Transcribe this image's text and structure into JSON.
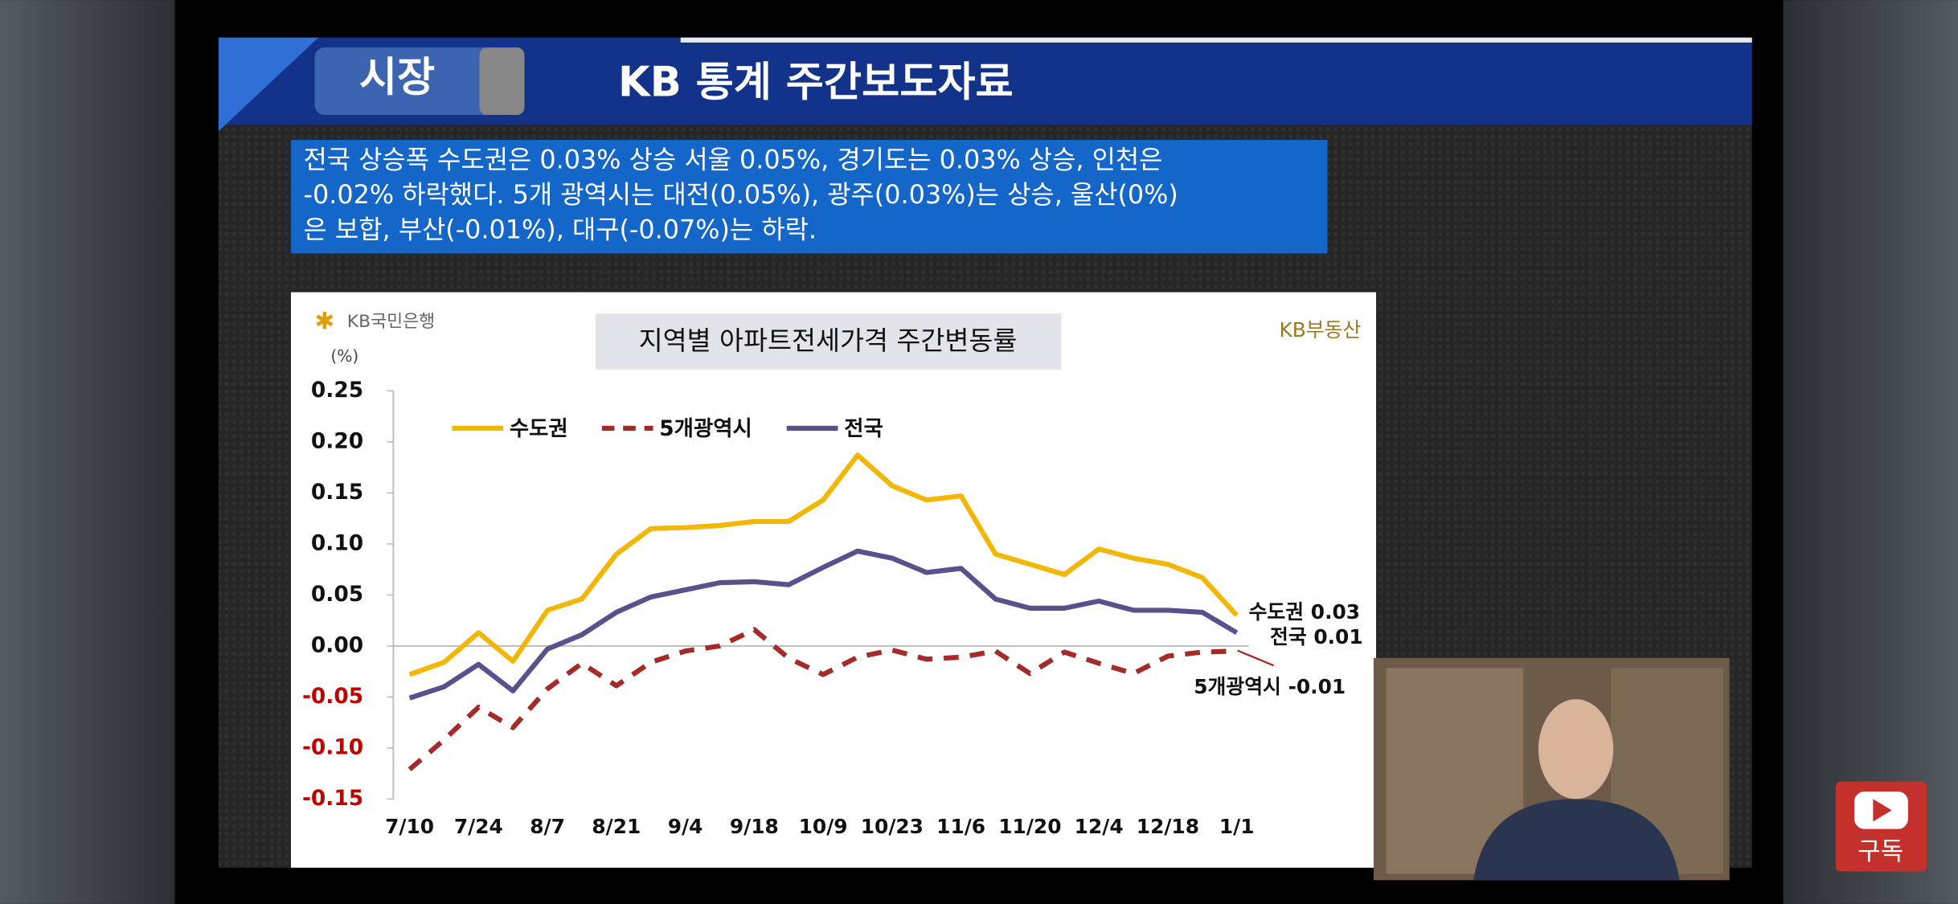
{
  "header": {
    "badge": "시장",
    "title": "KB 통계 주간보도자료"
  },
  "summary": [
    "전국 상승폭 수도권은 0.03% 상승 서울 0.05%, 경기도는 0.03% 상승, 인천은",
    "-0.02% 하락했다. 5개 광역시는 대전(0.05%), 광주(0.03%)는 상승, 울산(0%)",
    "은 보합, 부산(-0.01%), 대구(-0.07%)는 하락."
  ],
  "logos": {
    "left": "KB국민은행",
    "right": "KB부동산"
  },
  "subscribe": "구독",
  "chart_data": {
    "type": "line",
    "title": "지역별 아파트전세가격 주간변동률",
    "y_label": "(%)",
    "categories": [
      "7/10",
      null,
      "7/24",
      null,
      "8/7",
      null,
      "8/21",
      null,
      "9/4",
      null,
      "9/18",
      null,
      "10/9",
      null,
      "10/23",
      null,
      "11/6",
      null,
      "11/20",
      null,
      "12/4",
      null,
      "12/18",
      null,
      "1/1"
    ],
    "series": [
      {
        "name": "수도권",
        "color": "#f2b705",
        "dash": false,
        "values": [
          -0.028,
          -0.016,
          0.013,
          -0.015,
          0.035,
          0.046,
          0.09,
          0.115,
          0.116,
          0.118,
          0.122,
          0.122,
          0.143,
          0.187,
          0.157,
          0.143,
          0.147,
          0.09,
          0.08,
          0.07,
          0.095,
          0.086,
          0.08,
          0.067,
          0.03
        ]
      },
      {
        "name": "5개광역시",
        "color": "#a52a2a",
        "dash": true,
        "values": [
          -0.121,
          -0.092,
          -0.06,
          -0.08,
          -0.042,
          -0.017,
          -0.039,
          -0.016,
          -0.005,
          0,
          0.016,
          -0.012,
          -0.028,
          -0.011,
          -0.004,
          -0.013,
          -0.011,
          -0.005,
          -0.027,
          -0.006,
          -0.017,
          -0.027,
          -0.01,
          -0.006,
          -0.005
        ]
      },
      {
        "name": "전국",
        "color": "#5b4f8c",
        "dash": false,
        "values": [
          -0.051,
          -0.04,
          -0.018,
          -0.044,
          -0.003,
          0.011,
          0.033,
          0.048,
          0.055,
          0.062,
          0.063,
          0.06,
          0.077,
          0.093,
          0.086,
          0.072,
          0.076,
          0.046,
          0.037,
          0.037,
          0.044,
          0.035,
          0.035,
          0.033,
          0.013
        ]
      }
    ],
    "end_labels": [
      "수도권 0.03",
      "5개광역시 -0.01",
      "전국 0.01"
    ],
    "ylim": [
      -0.15,
      0.25
    ],
    "yticks": [
      {
        "value": -0.15,
        "label": "-0.15"
      },
      {
        "value": -0.1,
        "label": "-0.10"
      },
      {
        "value": -0.05,
        "label": "-0.05"
      },
      {
        "value": 0,
        "label": "0.00"
      },
      {
        "value": 0.05,
        "label": "0.05"
      },
      {
        "value": 0.1,
        "label": "0.10"
      },
      {
        "value": 0.15,
        "label": "0.15"
      },
      {
        "value": 0.2,
        "label": "0.20"
      },
      0.25
    ],
    "negative_tick_color": "#c00000",
    "grid": false,
    "legend": "top"
  }
}
